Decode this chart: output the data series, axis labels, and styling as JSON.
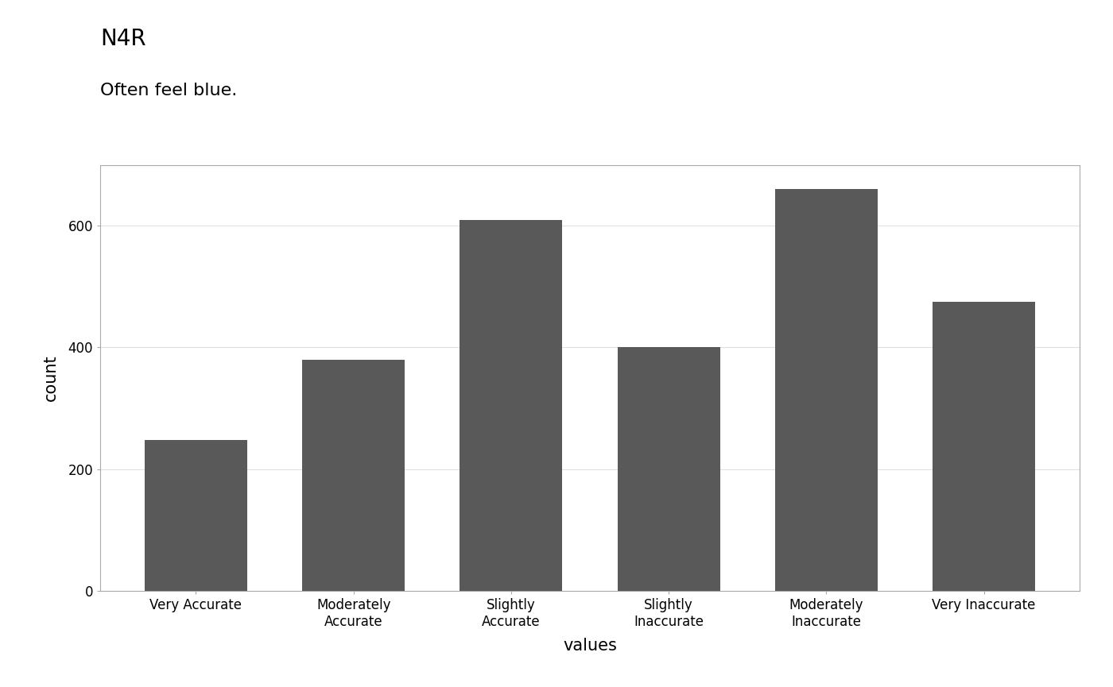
{
  "title": "N4R",
  "subtitle": "Often feel blue.",
  "categories": [
    "Very Accurate",
    "Moderately\nAccurate",
    "Slightly\nAccurate",
    "Slightly\nInaccurate",
    "Moderately\nInaccurate",
    "Very Inaccurate"
  ],
  "values": [
    248,
    380,
    610,
    400,
    660,
    475
  ],
  "bar_color": "#595959",
  "xlabel": "values",
  "ylabel": "count",
  "ylim": [
    0,
    700
  ],
  "yticks": [
    0,
    200,
    400,
    600
  ],
  "background_color": "#ffffff",
  "grid_color": "#e0e0e0",
  "title_fontsize": 20,
  "subtitle_fontsize": 16,
  "axis_label_fontsize": 15,
  "tick_fontsize": 12
}
